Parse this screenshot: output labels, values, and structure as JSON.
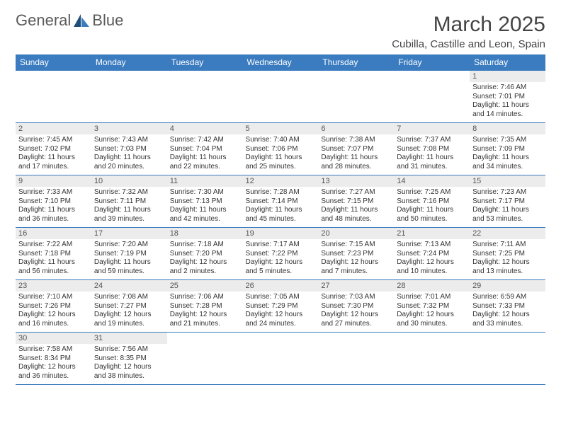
{
  "logo": {
    "text1": "General",
    "text2": "Blue"
  },
  "title": "March 2025",
  "location": "Cubilla, Castille and Leon, Spain",
  "colors": {
    "header_bg": "#3b7bbf",
    "header_fg": "#ffffff",
    "daynum_bg": "#ececec",
    "border": "#3b7bbf",
    "text": "#333333",
    "logo_gray": "#5a5a5a",
    "logo_blue": "#3b7bbf"
  },
  "weekdays": [
    "Sunday",
    "Monday",
    "Tuesday",
    "Wednesday",
    "Thursday",
    "Friday",
    "Saturday"
  ],
  "weeks": [
    [
      null,
      null,
      null,
      null,
      null,
      null,
      {
        "n": "1",
        "sr": "Sunrise: 7:46 AM",
        "ss": "Sunset: 7:01 PM",
        "dl": "Daylight: 11 hours and 14 minutes."
      }
    ],
    [
      {
        "n": "2",
        "sr": "Sunrise: 7:45 AM",
        "ss": "Sunset: 7:02 PM",
        "dl": "Daylight: 11 hours and 17 minutes."
      },
      {
        "n": "3",
        "sr": "Sunrise: 7:43 AM",
        "ss": "Sunset: 7:03 PM",
        "dl": "Daylight: 11 hours and 20 minutes."
      },
      {
        "n": "4",
        "sr": "Sunrise: 7:42 AM",
        "ss": "Sunset: 7:04 PM",
        "dl": "Daylight: 11 hours and 22 minutes."
      },
      {
        "n": "5",
        "sr": "Sunrise: 7:40 AM",
        "ss": "Sunset: 7:06 PM",
        "dl": "Daylight: 11 hours and 25 minutes."
      },
      {
        "n": "6",
        "sr": "Sunrise: 7:38 AM",
        "ss": "Sunset: 7:07 PM",
        "dl": "Daylight: 11 hours and 28 minutes."
      },
      {
        "n": "7",
        "sr": "Sunrise: 7:37 AM",
        "ss": "Sunset: 7:08 PM",
        "dl": "Daylight: 11 hours and 31 minutes."
      },
      {
        "n": "8",
        "sr": "Sunrise: 7:35 AM",
        "ss": "Sunset: 7:09 PM",
        "dl": "Daylight: 11 hours and 34 minutes."
      }
    ],
    [
      {
        "n": "9",
        "sr": "Sunrise: 7:33 AM",
        "ss": "Sunset: 7:10 PM",
        "dl": "Daylight: 11 hours and 36 minutes."
      },
      {
        "n": "10",
        "sr": "Sunrise: 7:32 AM",
        "ss": "Sunset: 7:11 PM",
        "dl": "Daylight: 11 hours and 39 minutes."
      },
      {
        "n": "11",
        "sr": "Sunrise: 7:30 AM",
        "ss": "Sunset: 7:13 PM",
        "dl": "Daylight: 11 hours and 42 minutes."
      },
      {
        "n": "12",
        "sr": "Sunrise: 7:28 AM",
        "ss": "Sunset: 7:14 PM",
        "dl": "Daylight: 11 hours and 45 minutes."
      },
      {
        "n": "13",
        "sr": "Sunrise: 7:27 AM",
        "ss": "Sunset: 7:15 PM",
        "dl": "Daylight: 11 hours and 48 minutes."
      },
      {
        "n": "14",
        "sr": "Sunrise: 7:25 AM",
        "ss": "Sunset: 7:16 PM",
        "dl": "Daylight: 11 hours and 50 minutes."
      },
      {
        "n": "15",
        "sr": "Sunrise: 7:23 AM",
        "ss": "Sunset: 7:17 PM",
        "dl": "Daylight: 11 hours and 53 minutes."
      }
    ],
    [
      {
        "n": "16",
        "sr": "Sunrise: 7:22 AM",
        "ss": "Sunset: 7:18 PM",
        "dl": "Daylight: 11 hours and 56 minutes."
      },
      {
        "n": "17",
        "sr": "Sunrise: 7:20 AM",
        "ss": "Sunset: 7:19 PM",
        "dl": "Daylight: 11 hours and 59 minutes."
      },
      {
        "n": "18",
        "sr": "Sunrise: 7:18 AM",
        "ss": "Sunset: 7:20 PM",
        "dl": "Daylight: 12 hours and 2 minutes."
      },
      {
        "n": "19",
        "sr": "Sunrise: 7:17 AM",
        "ss": "Sunset: 7:22 PM",
        "dl": "Daylight: 12 hours and 5 minutes."
      },
      {
        "n": "20",
        "sr": "Sunrise: 7:15 AM",
        "ss": "Sunset: 7:23 PM",
        "dl": "Daylight: 12 hours and 7 minutes."
      },
      {
        "n": "21",
        "sr": "Sunrise: 7:13 AM",
        "ss": "Sunset: 7:24 PM",
        "dl": "Daylight: 12 hours and 10 minutes."
      },
      {
        "n": "22",
        "sr": "Sunrise: 7:11 AM",
        "ss": "Sunset: 7:25 PM",
        "dl": "Daylight: 12 hours and 13 minutes."
      }
    ],
    [
      {
        "n": "23",
        "sr": "Sunrise: 7:10 AM",
        "ss": "Sunset: 7:26 PM",
        "dl": "Daylight: 12 hours and 16 minutes."
      },
      {
        "n": "24",
        "sr": "Sunrise: 7:08 AM",
        "ss": "Sunset: 7:27 PM",
        "dl": "Daylight: 12 hours and 19 minutes."
      },
      {
        "n": "25",
        "sr": "Sunrise: 7:06 AM",
        "ss": "Sunset: 7:28 PM",
        "dl": "Daylight: 12 hours and 21 minutes."
      },
      {
        "n": "26",
        "sr": "Sunrise: 7:05 AM",
        "ss": "Sunset: 7:29 PM",
        "dl": "Daylight: 12 hours and 24 minutes."
      },
      {
        "n": "27",
        "sr": "Sunrise: 7:03 AM",
        "ss": "Sunset: 7:30 PM",
        "dl": "Daylight: 12 hours and 27 minutes."
      },
      {
        "n": "28",
        "sr": "Sunrise: 7:01 AM",
        "ss": "Sunset: 7:32 PM",
        "dl": "Daylight: 12 hours and 30 minutes."
      },
      {
        "n": "29",
        "sr": "Sunrise: 6:59 AM",
        "ss": "Sunset: 7:33 PM",
        "dl": "Daylight: 12 hours and 33 minutes."
      }
    ],
    [
      {
        "n": "30",
        "sr": "Sunrise: 7:58 AM",
        "ss": "Sunset: 8:34 PM",
        "dl": "Daylight: 12 hours and 36 minutes."
      },
      {
        "n": "31",
        "sr": "Sunrise: 7:56 AM",
        "ss": "Sunset: 8:35 PM",
        "dl": "Daylight: 12 hours and 38 minutes."
      },
      null,
      null,
      null,
      null,
      null
    ]
  ]
}
